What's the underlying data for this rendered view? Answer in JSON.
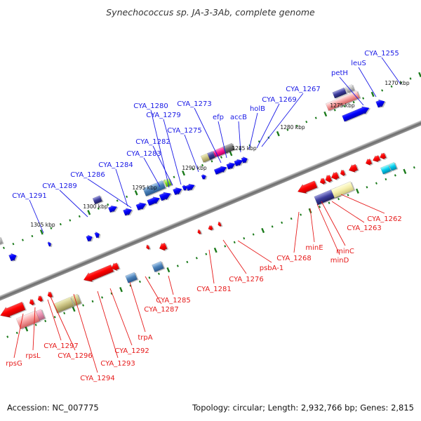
{
  "title": "Synechococcus sp. JA-3-3Ab, complete genome",
  "accession": "Accession: NC_007775",
  "topology": "Topology: circular; Length: 2,932,766 bp; Genes: 2,815",
  "colors": {
    "backbone": "#808080",
    "forward_label": "#1a1ae6",
    "reverse_label": "#e61a1a",
    "tick": "#1a7a1a"
  },
  "kbp_labels": [
    "1270 kbp",
    "1275 kbp",
    "1280 kbp",
    "1285 kbp",
    "1290 kbp",
    "1295 kbp",
    "1300 kbp",
    "1305 kbp"
  ],
  "forward_labels": [
    "CYA_1255",
    "leuS",
    "petH",
    "CYA_1267",
    "CYA_1269",
    "holB",
    "accB",
    "efp",
    "CYA_1273",
    "CYA_1275",
    "CYA_1279",
    "CYA_1280",
    "CYA_1282",
    "CYA_1283",
    "CYA_1284",
    "CYA_1286",
    "CYA_1289",
    "CYA_1291"
  ],
  "reverse_labels": [
    "CYA_1262",
    "CYA_1263",
    "minC",
    "minD",
    "minE",
    "CYA_1268",
    "psbA-1",
    "CYA_1276",
    "CYA_1281",
    "CYA_1285",
    "CYA_1287",
    "trpA",
    "CYA_1292",
    "CYA_1293",
    "CYA_1294",
    "CYA_1296",
    "CYA_1297",
    "rpsL",
    "rpsG"
  ]
}
